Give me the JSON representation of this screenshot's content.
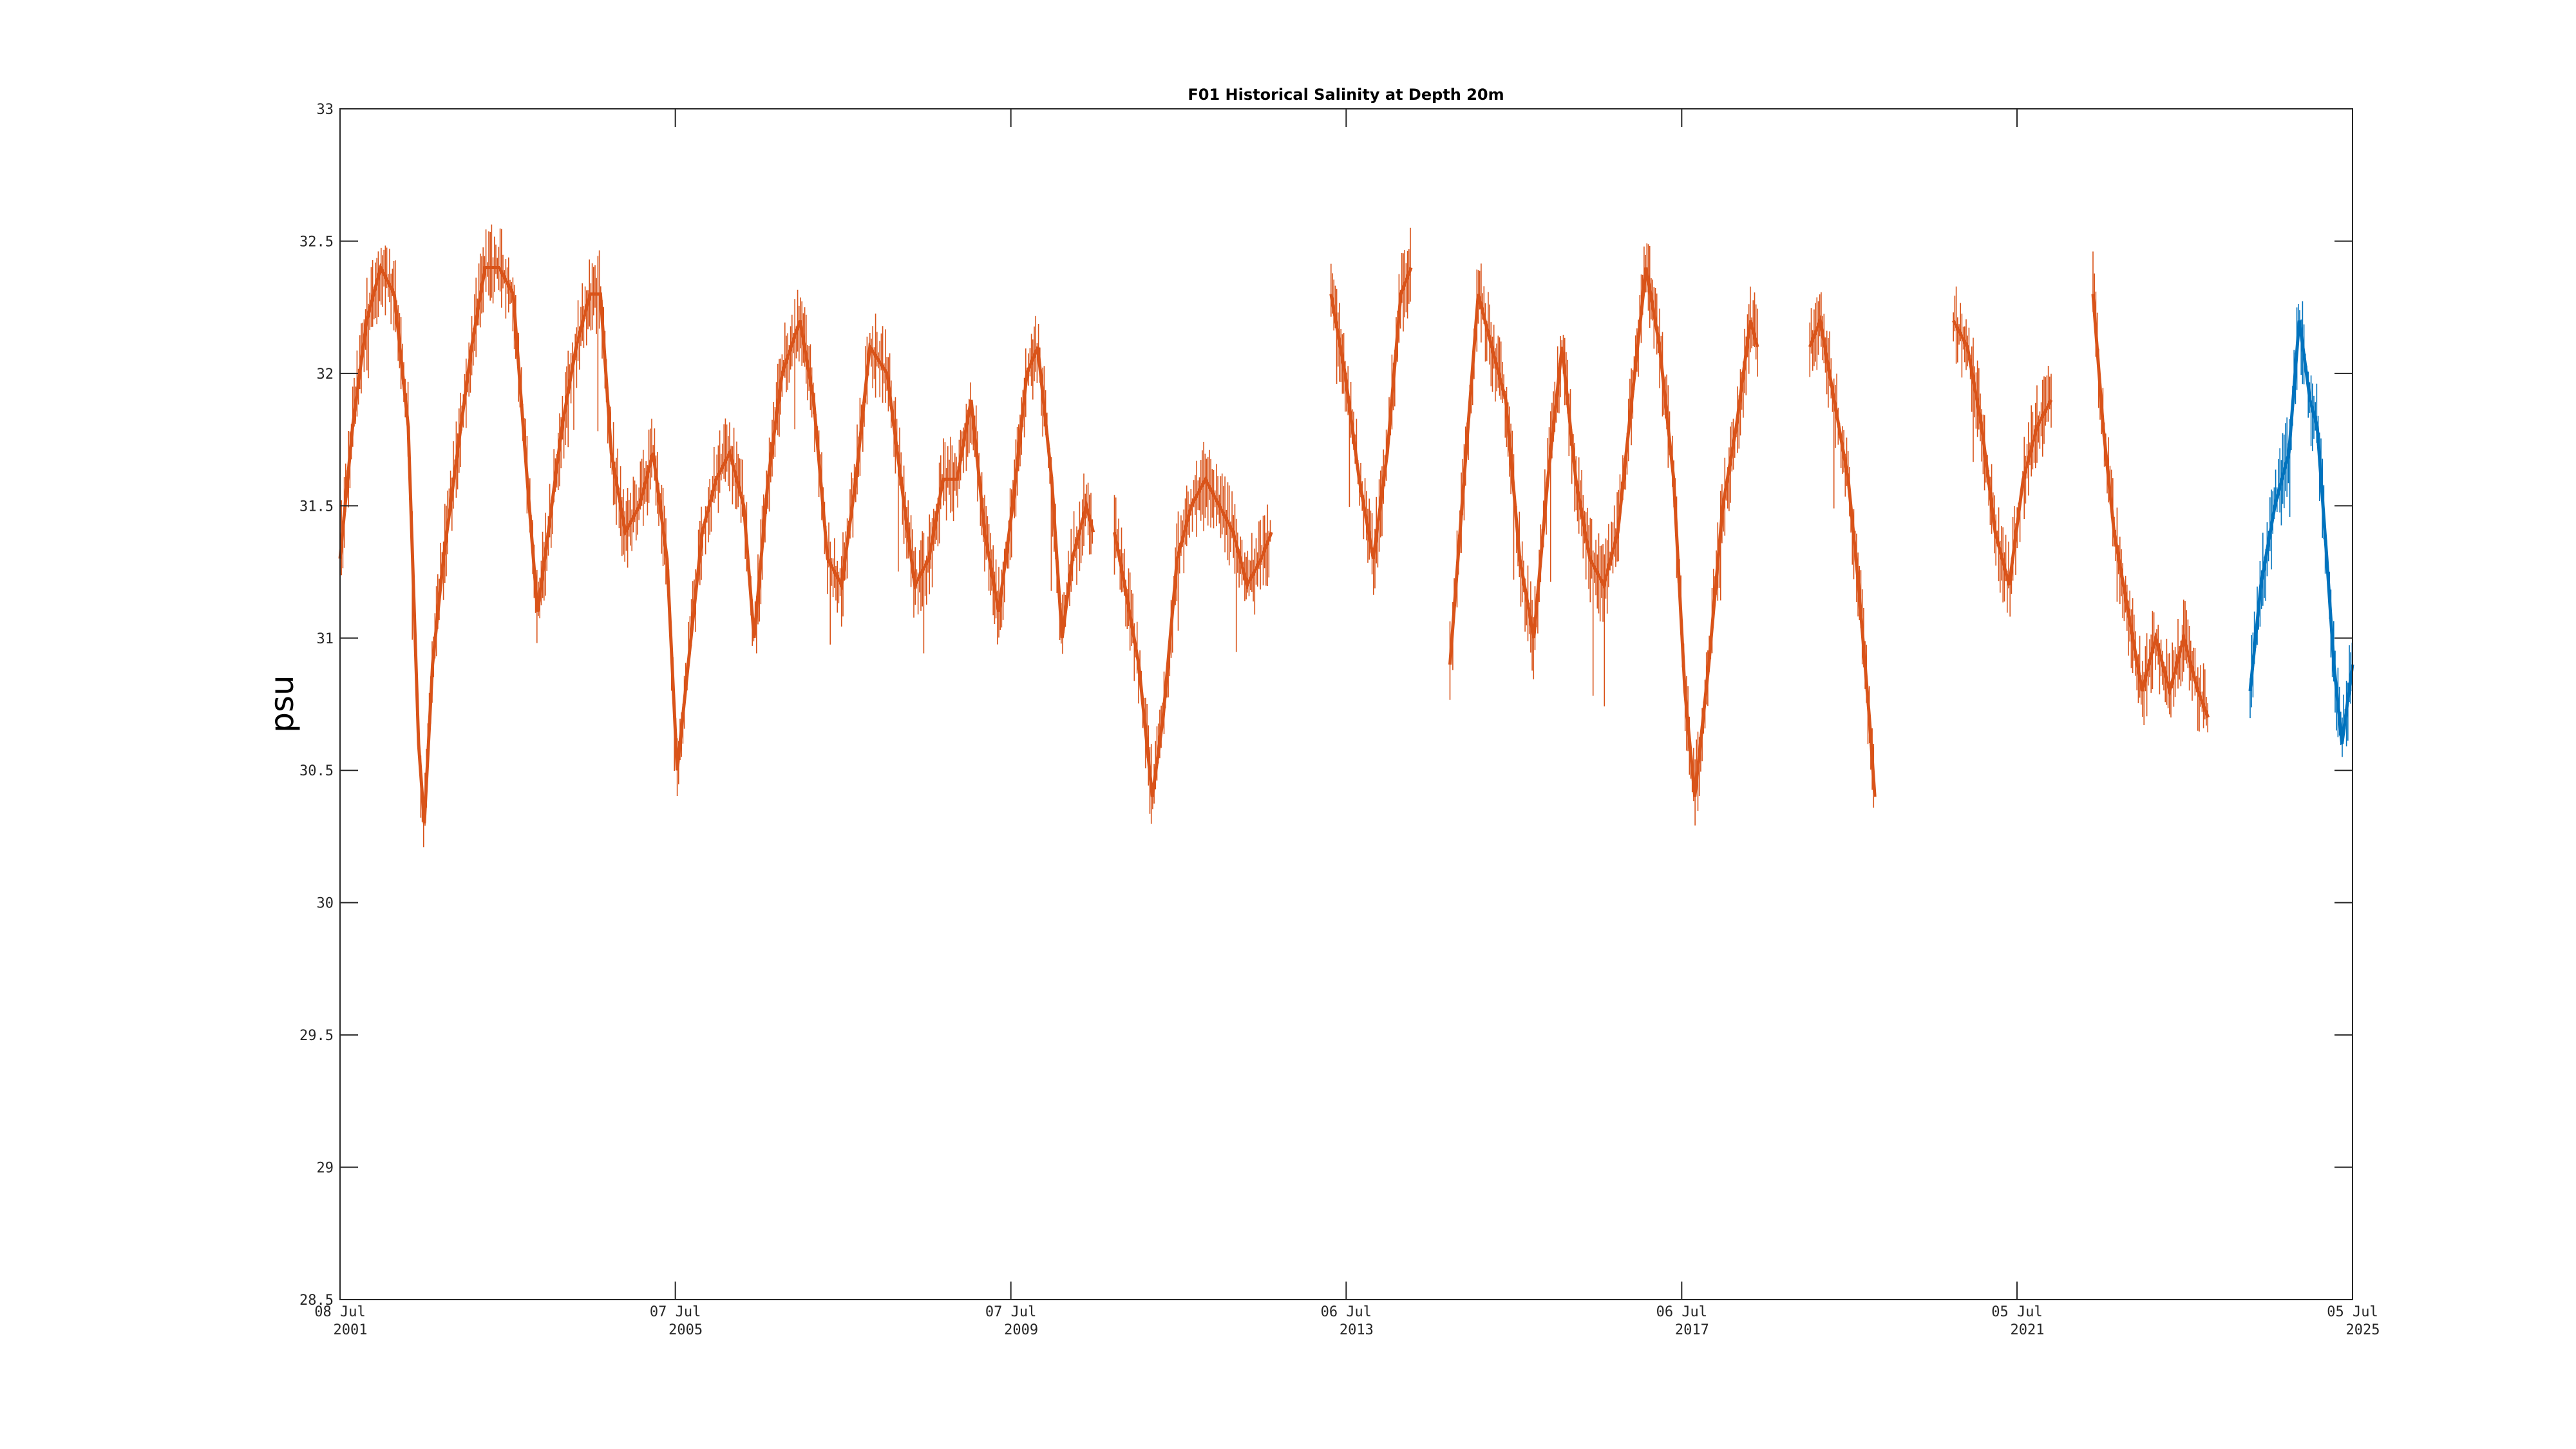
{
  "colors": {
    "historical": "#D95319",
    "recent": "#0072BD",
    "axis": "#262626"
  },
  "chart_data": {
    "type": "line",
    "title": "F01 Historical Salinity at Depth 20m",
    "xlabel": "",
    "ylabel": "psu",
    "ylim": [
      28.5,
      33
    ],
    "xlim": [
      "2001-07-08",
      "2025-07-05"
    ],
    "grid": false,
    "y_ticks": [
      "28.5",
      "29",
      "29.5",
      "30",
      "30.5",
      "31",
      "31.5",
      "32",
      "32.5",
      "33"
    ],
    "x_ticks": [
      {
        "date": "2001-07-08",
        "line1": "08 Jul",
        "line2": "2001"
      },
      {
        "date": "2005-07-07",
        "line1": "07 Jul",
        "line2": "2005"
      },
      {
        "date": "2009-07-07",
        "line1": "07 Jul",
        "line2": "2009"
      },
      {
        "date": "2013-07-06",
        "line1": "06 Jul",
        "line2": "2013"
      },
      {
        "date": "2017-07-06",
        "line1": "06 Jul",
        "line2": "2017"
      },
      {
        "date": "2021-07-05",
        "line1": "05 Jul",
        "line2": "2021"
      },
      {
        "date": "2025-07-05",
        "line1": "05 Jul",
        "line2": "2025"
      }
    ],
    "series": [
      {
        "color": "#D95319",
        "segments": [
          [
            [
              "2001-07-08",
              31.3
            ],
            [
              "2001-09-01",
              31.8
            ],
            [
              "2001-11-01",
              32.2
            ],
            [
              "2002-01-01",
              32.4
            ],
            [
              "2002-03-01",
              32.3
            ],
            [
              "2002-05-01",
              31.8
            ],
            [
              "2002-06-15",
              30.6
            ],
            [
              "2002-07-10",
              30.3
            ],
            [
              "2002-08-15",
              30.9
            ],
            [
              "2002-10-01",
              31.3
            ],
            [
              "2002-12-01",
              31.7
            ],
            [
              "2003-02-01",
              32.1
            ],
            [
              "2003-04-01",
              32.4
            ],
            [
              "2003-06-01",
              32.4
            ],
            [
              "2003-08-01",
              32.3
            ],
            [
              "2003-10-01",
              31.6
            ],
            [
              "2003-11-15",
              31.1
            ],
            [
              "2004-01-01",
              31.4
            ],
            [
              "2004-03-01",
              31.8
            ],
            [
              "2004-05-01",
              32.1
            ],
            [
              "2004-07-01",
              32.3
            ],
            [
              "2004-08-15",
              32.3
            ],
            [
              "2004-10-01",
              31.7
            ],
            [
              "2004-12-01",
              31.4
            ],
            [
              "2005-02-01",
              31.5
            ],
            [
              "2005-04-01",
              31.7
            ],
            [
              "2005-06-01",
              31.3
            ],
            [
              "2005-07-15",
              30.5
            ],
            [
              "2005-09-01",
              30.9
            ],
            [
              "2005-11-01",
              31.4
            ],
            [
              "2006-01-01",
              31.6
            ],
            [
              "2006-03-01",
              31.7
            ],
            [
              "2006-05-01",
              31.5
            ],
            [
              "2006-06-15",
              31.0
            ],
            [
              "2006-08-15",
              31.6
            ],
            [
              "2006-10-15",
              32.0
            ],
            [
              "2007-01-01",
              32.2
            ],
            [
              "2007-03-01",
              31.9
            ],
            [
              "2007-05-01",
              31.3
            ],
            [
              "2007-07-01",
              31.2
            ],
            [
              "2007-09-01",
              31.6
            ],
            [
              "2007-11-01",
              32.1
            ],
            [
              "2008-01-15",
              32.0
            ],
            [
              "2008-03-15",
              31.6
            ],
            [
              "2008-05-15",
              31.2
            ],
            [
              "2008-07-15",
              31.3
            ],
            [
              "2008-09-15",
              31.6
            ],
            [
              "2008-11-15",
              31.6
            ],
            [
              "2009-01-15",
              31.9
            ],
            [
              "2009-03-15",
              31.4
            ],
            [
              "2009-05-15",
              31.1
            ],
            [
              "2009-07-15",
              31.5
            ],
            [
              "2009-09-15",
              32.0
            ],
            [
              "2009-11-01",
              32.1
            ],
            [
              "2010-01-01",
              31.6
            ],
            [
              "2010-02-15",
              31.0
            ],
            [
              "2010-04-01",
              31.3
            ],
            [
              "2010-06-01",
              31.5
            ],
            [
              "2010-07-01",
              31.4
            ]
          ],
          [
            [
              "2010-10-01",
              31.4
            ],
            [
              "2010-11-15",
              31.2
            ],
            [
              "2011-01-15",
              30.9
            ],
            [
              "2011-03-15",
              30.4
            ],
            [
              "2011-05-01",
              30.7
            ],
            [
              "2011-07-01",
              31.3
            ],
            [
              "2011-09-01",
              31.5
            ],
            [
              "2011-11-01",
              31.6
            ],
            [
              "2012-01-01",
              31.5
            ],
            [
              "2012-03-01",
              31.4
            ],
            [
              "2012-05-01",
              31.2
            ],
            [
              "2012-07-01",
              31.3
            ],
            [
              "2012-08-15",
              31.4
            ]
          ],
          [
            [
              "2013-05-01",
              32.3
            ],
            [
              "2013-07-01",
              32.0
            ],
            [
              "2013-09-01",
              31.6
            ],
            [
              "2013-11-01",
              31.3
            ],
            [
              "2014-01-01",
              31.7
            ],
            [
              "2014-03-01",
              32.3
            ],
            [
              "2014-04-15",
              32.4
            ]
          ],
          [
            [
              "2014-10-01",
              30.9
            ],
            [
              "2014-12-01",
              31.6
            ],
            [
              "2015-02-01",
              32.3
            ],
            [
              "2015-04-01",
              32.1
            ],
            [
              "2015-06-01",
              31.9
            ],
            [
              "2015-08-01",
              31.3
            ],
            [
              "2015-10-01",
              31.0
            ],
            [
              "2015-12-01",
              31.6
            ],
            [
              "2016-02-01",
              32.1
            ],
            [
              "2016-04-01",
              31.6
            ],
            [
              "2016-06-01",
              31.3
            ],
            [
              "2016-08-01",
              31.2
            ],
            [
              "2016-10-01",
              31.4
            ],
            [
              "2016-12-01",
              31.9
            ],
            [
              "2017-02-01",
              32.4
            ],
            [
              "2017-04-01",
              32.1
            ],
            [
              "2017-06-01",
              31.6
            ],
            [
              "2017-07-20",
              30.8
            ],
            [
              "2017-09-01",
              30.4
            ],
            [
              "2017-11-01",
              30.9
            ],
            [
              "2018-01-01",
              31.5
            ],
            [
              "2018-03-01",
              31.8
            ],
            [
              "2018-05-01",
              32.2
            ],
            [
              "2018-06-01",
              32.1
            ]
          ],
          [
            [
              "2019-01-15",
              32.1
            ],
            [
              "2019-03-01",
              32.2
            ],
            [
              "2019-05-01",
              31.9
            ],
            [
              "2019-07-01",
              31.6
            ],
            [
              "2019-08-15",
              31.2
            ],
            [
              "2019-10-01",
              30.7
            ],
            [
              "2019-10-25",
              30.4
            ]
          ],
          [
            [
              "2020-10-01",
              32.2
            ],
            [
              "2020-12-01",
              32.1
            ],
            [
              "2021-02-01",
              31.8
            ],
            [
              "2021-04-01",
              31.4
            ],
            [
              "2021-06-01",
              31.2
            ],
            [
              "2021-08-01",
              31.6
            ],
            [
              "2021-10-01",
              31.8
            ],
            [
              "2021-12-01",
              31.9
            ]
          ],
          [
            [
              "2022-06-01",
              32.3
            ],
            [
              "2022-07-15",
              31.8
            ],
            [
              "2022-09-01",
              31.4
            ],
            [
              "2022-11-01",
              31.1
            ],
            [
              "2023-01-01",
              30.8
            ],
            [
              "2023-03-01",
              31.0
            ],
            [
              "2023-05-01",
              30.8
            ],
            [
              "2023-07-01",
              31.0
            ],
            [
              "2023-09-01",
              30.8
            ],
            [
              "2023-10-15",
              30.7
            ]
          ]
        ]
      },
      {
        "color": "#0072BD",
        "segments": [
          [
            [
              "2024-04-15",
              30.8
            ],
            [
              "2024-06-01",
              31.2
            ],
            [
              "2024-08-01",
              31.5
            ],
            [
              "2024-10-01",
              31.7
            ],
            [
              "2024-11-15",
              32.2
            ],
            [
              "2025-01-01",
              31.9
            ],
            [
              "2025-02-01",
              31.8
            ],
            [
              "2025-03-15",
              31.3
            ],
            [
              "2025-04-15",
              30.9
            ],
            [
              "2025-05-20",
              30.6
            ],
            [
              "2025-07-05",
              30.9
            ]
          ]
        ]
      }
    ]
  }
}
